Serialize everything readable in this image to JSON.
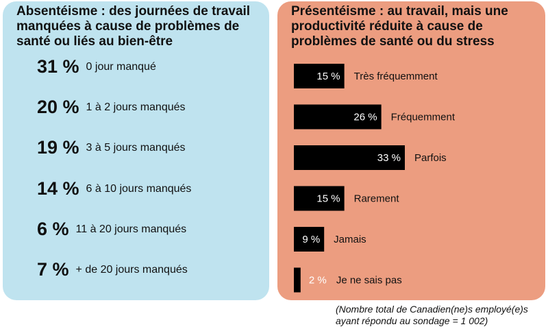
{
  "absenteeism": {
    "title": "Absentéisme : des journées de travail manquées à cause de problèmes de santé ou liés au bien-être",
    "rows": [
      {
        "pct": "31 %",
        "label": "0 jour manqué"
      },
      {
        "pct": "20 %",
        "label": "1 à 2 jours manqués"
      },
      {
        "pct": "19 %",
        "label": "3 à 5 jours manqués"
      },
      {
        "pct": "14 %",
        "label": "6 à 10 jours manqués"
      },
      {
        "pct": "6 %",
        "label": "11 à 20 jours manqués"
      },
      {
        "pct": "7 %",
        "label": "+ de 20 jours manqués"
      }
    ]
  },
  "presenteeism": {
    "title": "Présentéisme : au travail, mais une productivité réduite à cause de problèmes de santé ou du stress"
  },
  "chart_data": {
    "type": "bar",
    "orientation": "horizontal",
    "categories": [
      "Très fréquemment",
      "Fréquemment",
      "Parfois",
      "Rarement",
      "Jamais",
      "Je ne sais pas"
    ],
    "values": [
      15,
      26,
      33,
      15,
      9,
      2
    ],
    "value_labels": [
      "15 %",
      "26 %",
      "33 %",
      "15 %",
      "9 %",
      "2 %"
    ],
    "bar_color": "#000000",
    "xlim": [
      0,
      33
    ]
  },
  "footnote": "(Nombre total de Canadien(ne)s employé(e)s ayant répondu au sondage = 1 002)",
  "colors": {
    "left_panel": "#bfe3ef",
    "right_panel": "#ec9d80"
  }
}
